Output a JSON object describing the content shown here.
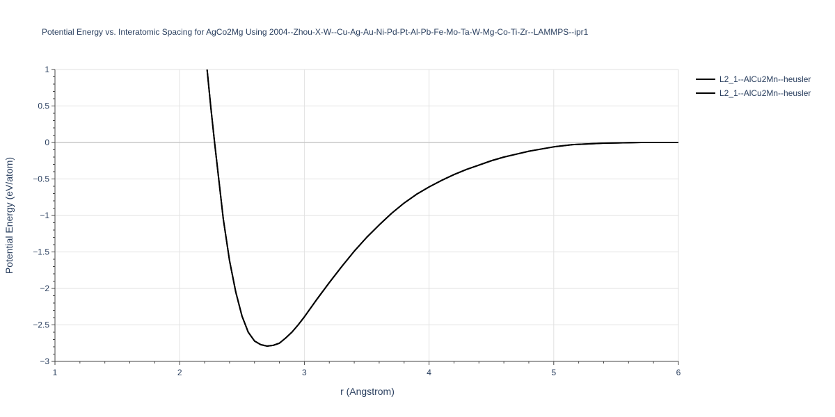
{
  "chart_data": {
    "type": "line",
    "title": "Potential Energy vs. Interatomic Spacing for AgCo2Mg Using 2004--Zhou-X-W--Cu-Ag-Au-Ni-Pd-Pt-Al-Pb-Fe-Mo-Ta-W-Mg-Co-Ti-Zr--LAMMPS--ipr1",
    "xlabel": "r (Angstrom)",
    "ylabel": "Potential Energy (eV/atom)",
    "xlim": [
      1,
      6
    ],
    "ylim": [
      -3,
      1
    ],
    "x_ticks": [
      1,
      2,
      3,
      4,
      5,
      6
    ],
    "y_ticks": [
      1,
      0.5,
      0,
      -0.5,
      -1,
      -1.5,
      -2,
      -2.5,
      -3
    ],
    "x_tick_labels": [
      "1",
      "2",
      "3",
      "4",
      "5",
      "6"
    ],
    "y_tick_labels": [
      "1",
      "0.5",
      "0",
      "−0.5",
      "−1",
      "−1.5",
      "−2",
      "−2.5",
      "−3"
    ],
    "grid": true,
    "legend_position": "top-right",
    "series": [
      {
        "name": "L2_1--AlCu2Mn--heusler",
        "color": "#000000",
        "x": [
          2.22,
          2.25,
          2.28,
          2.31,
          2.35,
          2.4,
          2.45,
          2.5,
          2.55,
          2.6,
          2.65,
          2.7,
          2.75,
          2.8,
          2.85,
          2.9,
          2.95,
          3.0,
          3.1,
          3.2,
          3.3,
          3.4,
          3.5,
          3.6,
          3.7,
          3.8,
          3.9,
          4.0,
          4.1,
          4.2,
          4.3,
          4.4,
          4.5,
          4.6,
          4.7,
          4.8,
          4.9,
          5.0,
          5.15,
          5.4,
          5.7,
          6.0
        ],
        "y": [
          1.0,
          0.48,
          0.0,
          -0.45,
          -1.05,
          -1.62,
          -2.05,
          -2.38,
          -2.6,
          -2.72,
          -2.77,
          -2.79,
          -2.78,
          -2.75,
          -2.68,
          -2.6,
          -2.5,
          -2.39,
          -2.15,
          -1.92,
          -1.7,
          -1.49,
          -1.3,
          -1.13,
          -0.97,
          -0.83,
          -0.71,
          -0.61,
          -0.52,
          -0.44,
          -0.37,
          -0.31,
          -0.25,
          -0.2,
          -0.16,
          -0.12,
          -0.09,
          -0.06,
          -0.03,
          -0.01,
          0.0,
          0.0
        ]
      },
      {
        "name": "L2_1--AlCu2Mn--heusler",
        "color": "#000000",
        "x": [
          2.22,
          2.25,
          2.28,
          2.31,
          2.35,
          2.4,
          2.45,
          2.5,
          2.55,
          2.6,
          2.65,
          2.7,
          2.75,
          2.8,
          2.85,
          2.9,
          2.95,
          3.0,
          3.1,
          3.2,
          3.3,
          3.4,
          3.5,
          3.6,
          3.7,
          3.8,
          3.9,
          4.0,
          4.1,
          4.2,
          4.3,
          4.4,
          4.5,
          4.6,
          4.7,
          4.8,
          4.9,
          5.0,
          5.15,
          5.4,
          5.7,
          6.0
        ],
        "y": [
          1.0,
          0.48,
          0.0,
          -0.45,
          -1.05,
          -1.62,
          -2.05,
          -2.38,
          -2.6,
          -2.72,
          -2.77,
          -2.79,
          -2.78,
          -2.75,
          -2.68,
          -2.6,
          -2.5,
          -2.39,
          -2.15,
          -1.92,
          -1.7,
          -1.49,
          -1.3,
          -1.13,
          -0.97,
          -0.83,
          -0.71,
          -0.61,
          -0.52,
          -0.44,
          -0.37,
          -0.31,
          -0.25,
          -0.2,
          -0.16,
          -0.12,
          -0.09,
          -0.06,
          -0.03,
          -0.01,
          0.0,
          0.0
        ]
      }
    ]
  }
}
